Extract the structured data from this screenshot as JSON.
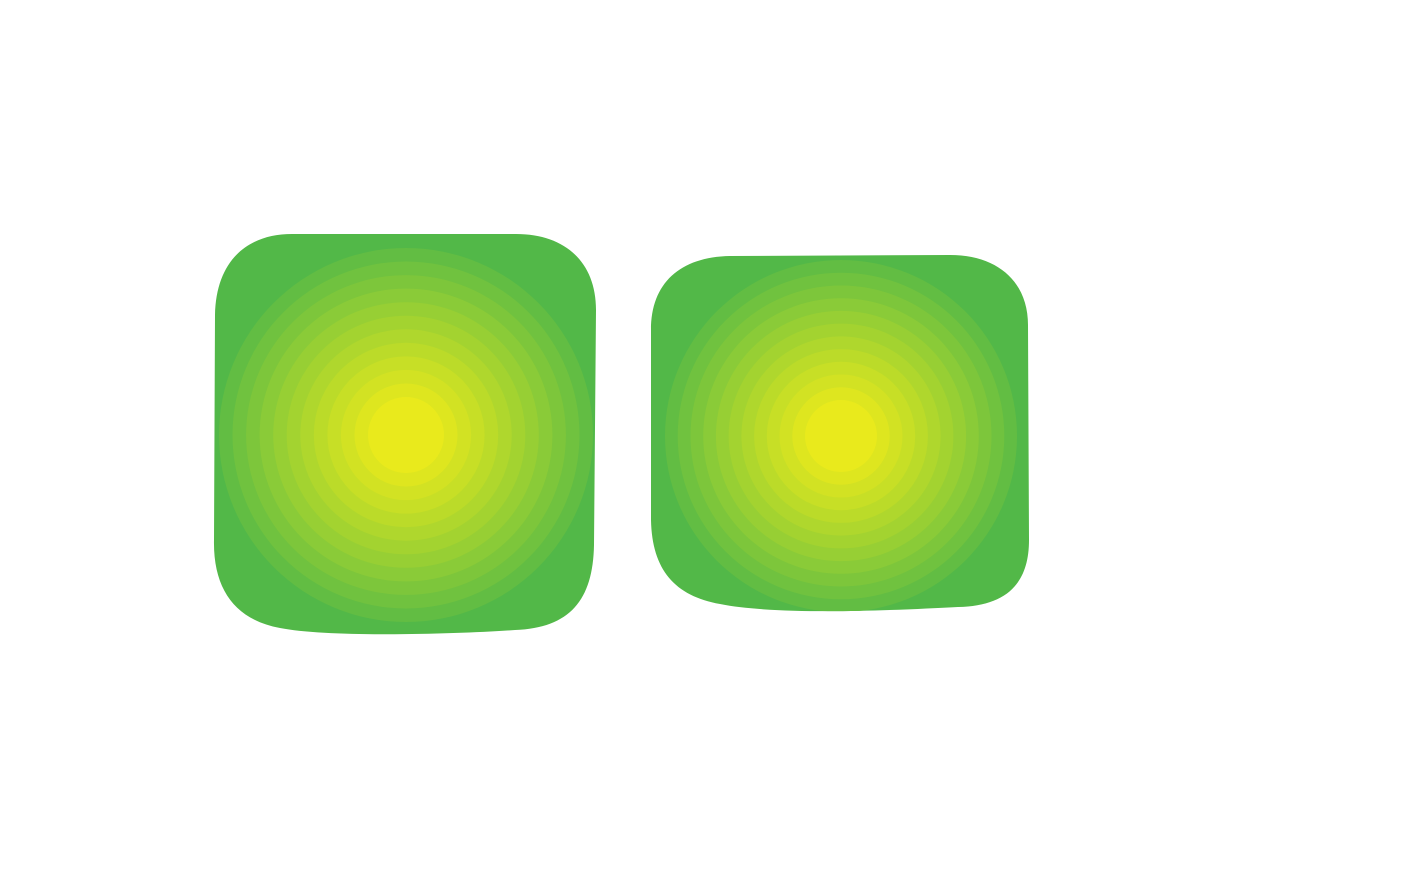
{
  "background_color": "#ffffff",
  "tiles": [
    {
      "name": "tile-left",
      "outer_color": "#52b848",
      "center_color": "#e9ea1c",
      "ring_count": 12
    },
    {
      "name": "tile-right",
      "outer_color": "#52b848",
      "center_color": "#e9ea1c",
      "ring_count": 12
    }
  ]
}
